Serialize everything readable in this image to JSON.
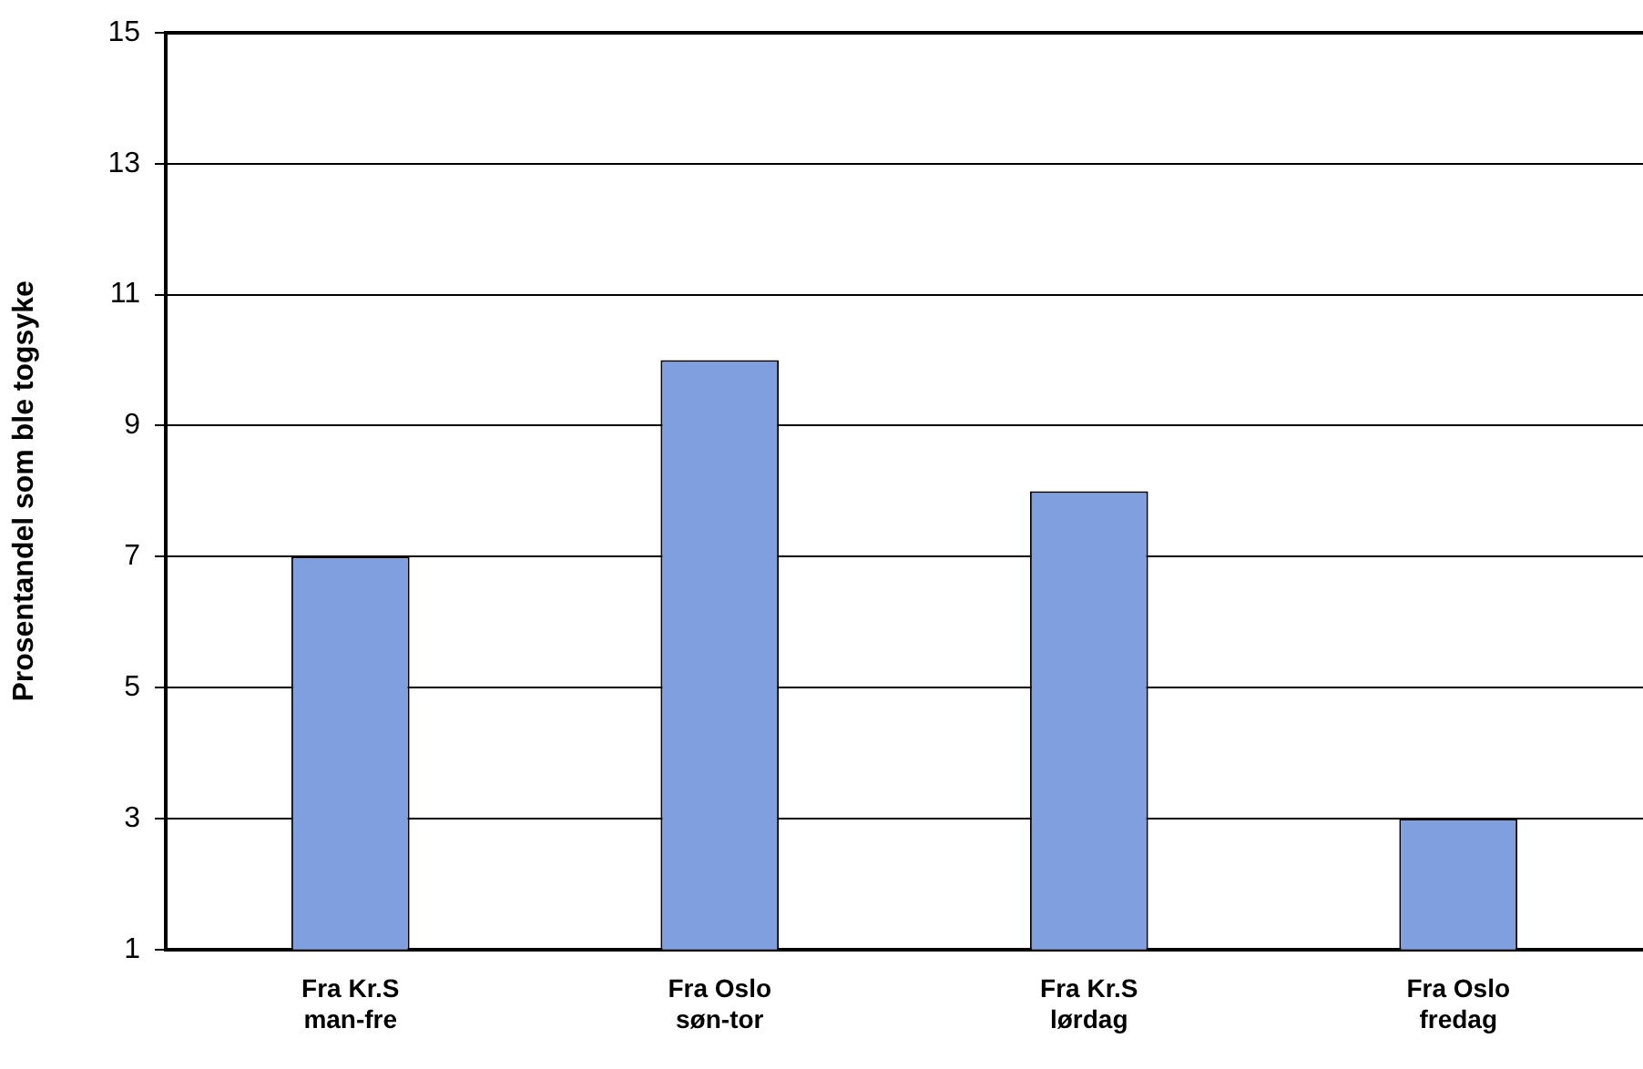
{
  "chart_data": {
    "type": "bar",
    "ylabel": "Prosentandel som ble togsyke",
    "categories": [
      "Fra Kr.S\nman-fre",
      "Fra Oslo\nsøn-tor",
      "Fra Kr.S\nlørdag",
      "Fra Oslo\nfredag"
    ],
    "values": [
      7,
      10,
      8,
      3
    ],
    "color": "#7f9fdf",
    "ylim": [
      1,
      15
    ],
    "yticks": [
      1,
      3,
      5,
      7,
      9,
      11,
      13,
      15
    ],
    "grid": "y",
    "legend": false
  }
}
